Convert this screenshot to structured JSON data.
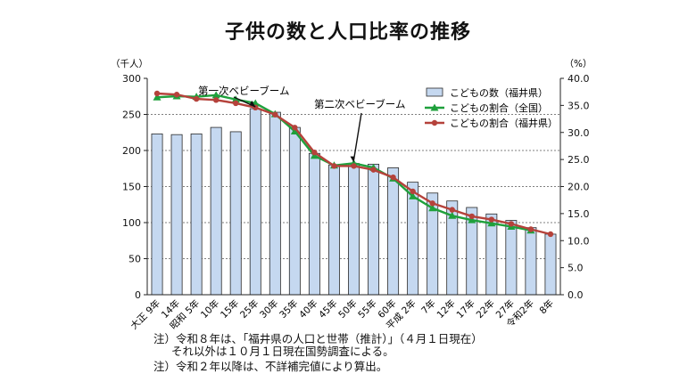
{
  "chart_data": {
    "type": "bar",
    "title": "子供の数と人口比率の推移",
    "left_axis_unit": "（千人）",
    "right_axis_unit": "（%）",
    "categories": [
      "大正 9年",
      "14年",
      "昭和 5年",
      "10年",
      "15年",
      "25年",
      "30年",
      "35年",
      "40年",
      "45年",
      "50年",
      "55年",
      "60年",
      "平成 2年",
      "7年",
      "12年",
      "17年",
      "22年",
      "27年",
      "令和2年",
      "8年"
    ],
    "left_ylim": [
      0,
      300
    ],
    "left_ticks": [
      "0",
      "50",
      "100",
      "150",
      "200",
      "250",
      "300"
    ],
    "right_ylim": [
      0,
      40
    ],
    "right_ticks": [
      "0.0",
      "5.0",
      "10.0",
      "15.0",
      "20.0",
      "25.0",
      "30.0",
      "35.0",
      "40.0"
    ],
    "series": [
      {
        "name": "こどもの数（福井県）",
        "kind": "bar",
        "axis": "left",
        "color": "#c5d8f0",
        "values": [
          223,
          222,
          223,
          232,
          226,
          258,
          253,
          232,
          196,
          180,
          182,
          181,
          176,
          156,
          141,
          130,
          121,
          112,
          103,
          93,
          84
        ]
      },
      {
        "name": "こどもの割合（全国）",
        "kind": "line",
        "axis": "right",
        "color": "#1fa03c",
        "marker": "triangle",
        "values": [
          36.5,
          36.7,
          36.6,
          36.9,
          36.1,
          35.4,
          33.4,
          30.2,
          25.7,
          23.9,
          24.3,
          23.5,
          21.5,
          18.2,
          16.0,
          14.6,
          13.8,
          13.2,
          12.6,
          11.9,
          null
        ]
      },
      {
        "name": "こどもの割合（福井県）",
        "kind": "line",
        "axis": "right",
        "color": "#b5423b",
        "marker": "circle",
        "values": [
          37.2,
          37.0,
          36.2,
          36.0,
          35.4,
          34.6,
          33.3,
          30.9,
          26.3,
          23.8,
          23.8,
          23.1,
          21.7,
          19.1,
          16.9,
          15.7,
          14.5,
          13.9,
          13.1,
          12.1,
          11.2
        ]
      }
    ],
    "annotations": [
      {
        "text": "第一次ベビーブーム",
        "category_index": 5
      },
      {
        "text": "第二次ベビーブーム",
        "category_index": 10
      }
    ],
    "legend_position": "top-right",
    "grid": "horizontal dotted"
  },
  "notes": [
    "注）令和８年は、「福井県の人口と世帯（推計）」（４月１日現在）",
    "それ以外は１０月１日現在国勢調査による。",
    "注）令和２年以降は、不詳補完値により算出。"
  ]
}
